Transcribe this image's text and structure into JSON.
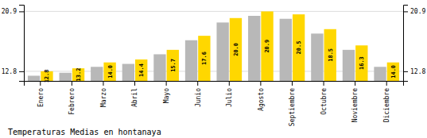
{
  "chart_data": {
    "type": "bar",
    "title": "Temperaturas Medias en hontanaya",
    "categories": [
      "Enero",
      "Febrero",
      "Marzo",
      "Abril",
      "Mayo",
      "Junio",
      "Julio",
      "Agosto",
      "Septiembre",
      "Octubre",
      "Noviembre",
      "Diciembre"
    ],
    "series": [
      {
        "color": "#B8B8B8",
        "values": [
          12.2,
          12.6,
          13.4,
          13.8,
          15.1,
          17.0,
          19.4,
          20.3,
          19.9,
          17.9,
          15.7,
          13.4
        ]
      },
      {
        "color": "#FFD700",
        "values": [
          12.8,
          13.2,
          14.0,
          14.4,
          15.7,
          17.6,
          20.0,
          20.9,
          20.5,
          18.5,
          16.3,
          14.0
        ],
        "data_labels": true,
        "value_labels": [
          "12.8",
          "13.2",
          "14.0",
          "14.4",
          "15.7",
          "17.6",
          "20.0",
          "20.9",
          "20.5",
          "18.5",
          "16.3",
          "14.0"
        ]
      }
    ],
    "ylim": [
      11.5,
      21.8
    ],
    "yticks": [
      12.8,
      20.9
    ],
    "y2lim": [
      11.5,
      21.8
    ],
    "y2ticks": [
      12.8,
      20.9
    ],
    "grid": true
  }
}
